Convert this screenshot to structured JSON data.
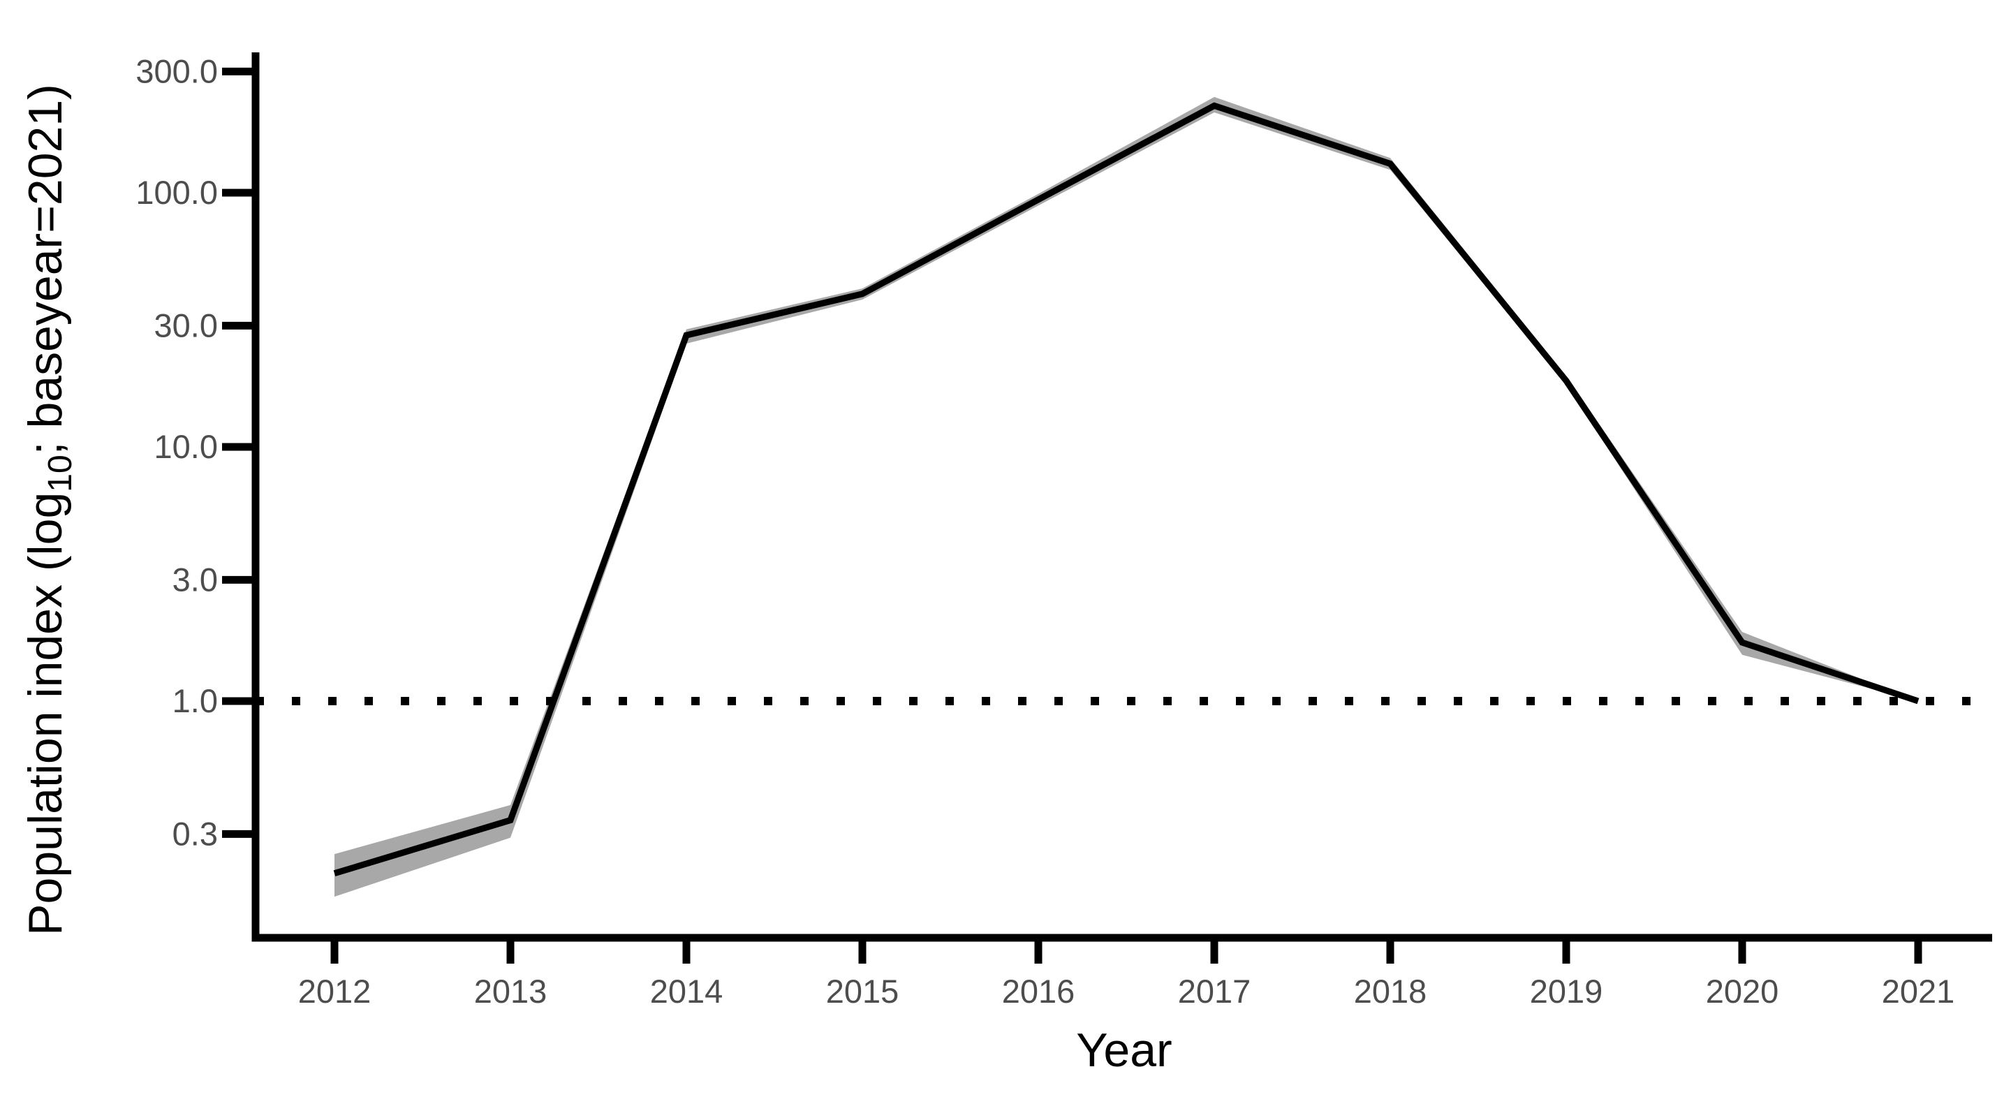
{
  "chart_data": {
    "type": "line",
    "title": "",
    "xlabel": "Year",
    "ylabel": "Population index (log10; baseyear=2021)",
    "ylabel_parts": {
      "prefix": "Population index (log",
      "subscript": "10",
      "suffix": "; baseyear=2021)"
    },
    "yscale": "log10",
    "grid": false,
    "legend": "none",
    "x": [
      2012,
      2013,
      2014,
      2015,
      2016,
      2017,
      2018,
      2019,
      2020,
      2021
    ],
    "xtick_labels": [
      "2012",
      "2013",
      "2014",
      "2015",
      "2016",
      "2017",
      "2018",
      "2019",
      "2020",
      "2021"
    ],
    "series": [
      {
        "name": "population-index",
        "values": [
          0.21,
          0.34,
          27.5,
          40,
          94,
          220,
          130,
          18.2,
          1.7,
          1.0
        ]
      }
    ],
    "ci_low": [
      0.17,
      0.29,
      25.5,
      38,
      89,
      207,
      123,
      17.6,
      1.52,
      1.0
    ],
    "ci_high": [
      0.25,
      0.39,
      29,
      42,
      99,
      238,
      137,
      19.0,
      1.87,
      1.0
    ],
    "yticks": [
      300.0,
      100.0,
      30.0,
      10.0,
      3.0,
      1.0,
      0.3
    ],
    "ytick_labels": [
      "300.0",
      "100.0",
      "30.0",
      "10.0",
      "3.0",
      "1.0",
      "0.3"
    ],
    "reference_line": {
      "value": 1.0,
      "style": "dotted"
    },
    "xlim": [
      2011.55,
      2021.45
    ],
    "ylim": [
      0.12,
      360
    ],
    "colors": {
      "line": "#000000",
      "ribbon": "#a8a8a8",
      "axis": "#000000",
      "tick_label": "#4d4d4d",
      "axis_title": "#000000",
      "background": "#ffffff"
    }
  }
}
